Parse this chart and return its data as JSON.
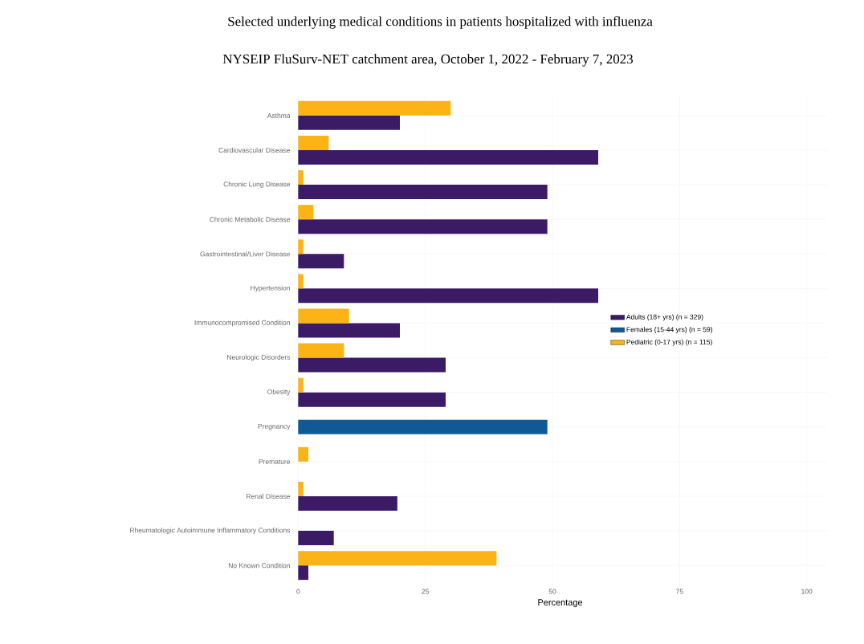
{
  "chart_data": {
    "type": "bar",
    "orientation": "horizontal",
    "title": "Selected underlying medical conditions in patients hospitalized with influenza",
    "subtitle": "NYSEIP FluSurv-NET catchment area, October 1, 2022 - February 7, 2023",
    "xlabel": "Percentage",
    "categories": [
      "Asthma",
      "Cardiovascular Disease",
      "Chronic Lung Disease",
      "Chronic Metabolic Disease",
      "Gastrointestinal/Liver Disease",
      "Hypertension",
      "Immunocompromised Condition",
      "Neurologic Disorders",
      "Obesity",
      "Pregnancy",
      "Premature",
      "Renal Disease",
      "Rheumatologic Autoimmune Inflammatory Conditions",
      "No Known Condition"
    ],
    "series": [
      {
        "name": "Adults (18+ yrs) (n = 329)",
        "color": "#3b1a66",
        "values": [
          20,
          59,
          49,
          49,
          9,
          59,
          20,
          29,
          29,
          null,
          null,
          19.5,
          7,
          2
        ]
      },
      {
        "name": "Females (15-44 yrs) (n = 59)",
        "color": "#0f5a96",
        "values": [
          null,
          null,
          null,
          null,
          null,
          null,
          null,
          null,
          null,
          49,
          null,
          null,
          null,
          null
        ]
      },
      {
        "name": "Pediatric (0-17 yrs) (n = 115)",
        "color": "#fbb316",
        "values": [
          30,
          6,
          1,
          3,
          1,
          1,
          10,
          9,
          1,
          null,
          2,
          1,
          null,
          39
        ]
      }
    ],
    "xlim": [
      -1,
      104
    ],
    "xticks": [
      0,
      25,
      50,
      75,
      100
    ],
    "grid": true,
    "legend": "right"
  }
}
